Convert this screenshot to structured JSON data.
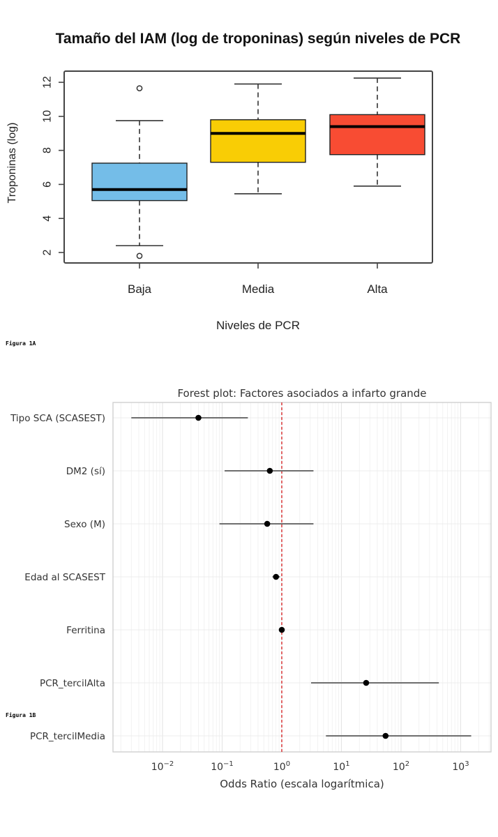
{
  "figure_1a": {
    "label": "Figura 1A",
    "title": "Tamaño del IAM (log de troponinas) según niveles de PCR",
    "xlabel": "Niveles de PCR",
    "ylabel": "Troponinas (log)"
  },
  "figure_1b": {
    "label": "Figura 1B",
    "title": "Forest plot: Factores asociados a infarto grande",
    "xlabel": "Odds Ratio (escala logarítmica)"
  },
  "chart_data": [
    {
      "type": "boxplot",
      "title": "Tamaño del IAM (log de troponinas) según niveles de PCR",
      "xlabel": "Niveles de PCR",
      "ylabel": "Troponinas (log)",
      "ylim": [
        1.4,
        12.65
      ],
      "yticks": [
        2,
        4,
        6,
        8,
        10,
        12
      ],
      "categories": [
        "Baja",
        "Media",
        "Alta"
      ],
      "series": [
        {
          "name": "Baja",
          "color": "#74BDE8",
          "whisker_low": 2.4,
          "q1": 5.05,
          "median": 5.7,
          "q3": 7.25,
          "whisker_high": 9.75,
          "outliers": [
            11.65,
            1.8
          ]
        },
        {
          "name": "Media",
          "color": "#F9CD05",
          "whisker_low": 5.45,
          "q1": 7.3,
          "median": 9.0,
          "q3": 9.8,
          "whisker_high": 11.9,
          "outliers": []
        },
        {
          "name": "Alta",
          "color": "#F84C33",
          "whisker_low": 5.9,
          "q1": 7.75,
          "median": 9.4,
          "q3": 10.1,
          "whisker_high": 12.25,
          "outliers": []
        }
      ],
      "grid": false
    },
    {
      "type": "forest",
      "title": "Forest plot: Factores asociados a infarto grande",
      "xlabel": "Odds Ratio (escala logarítmica)",
      "xscale": "log",
      "xlim": [
        0.0017,
        3000
      ],
      "xticks": [
        {
          "value": 0.01,
          "base": "10",
          "exp": "−2"
        },
        {
          "value": 0.1,
          "base": "10",
          "exp": "−1"
        },
        {
          "value": 1,
          "base": "10",
          "exp": "0"
        },
        {
          "value": 10,
          "base": "10",
          "exp": "1"
        },
        {
          "value": 100,
          "base": "10",
          "exp": "2"
        },
        {
          "value": 1000,
          "base": "10",
          "exp": "3"
        }
      ],
      "reference_line": {
        "value": 1,
        "color": "#D62728",
        "style": "dashed"
      },
      "rows": [
        {
          "label": "Tipo SCA (SCASEST)",
          "or": 0.04,
          "ci_low": 0.003,
          "ci_high": 0.27
        },
        {
          "label": "DM2 (sí)",
          "or": 0.63,
          "ci_low": 0.11,
          "ci_high": 3.4
        },
        {
          "label": "Sexo (M)",
          "or": 0.57,
          "ci_low": 0.09,
          "ci_high": 3.4
        },
        {
          "label": "Edad al SCASEST",
          "or": 0.8,
          "ci_low": 0.7,
          "ci_high": 0.93
        },
        {
          "label": "Ferritina",
          "or": 1.0,
          "ci_low": 0.995,
          "ci_high": 1.005
        },
        {
          "label": "PCR_tercilAlta",
          "or": 26,
          "ci_low": 3.1,
          "ci_high": 430
        },
        {
          "label": "PCR_tercilMedia",
          "or": 55,
          "ci_low": 5.5,
          "ci_high": 1500
        }
      ],
      "grid": true
    }
  ]
}
